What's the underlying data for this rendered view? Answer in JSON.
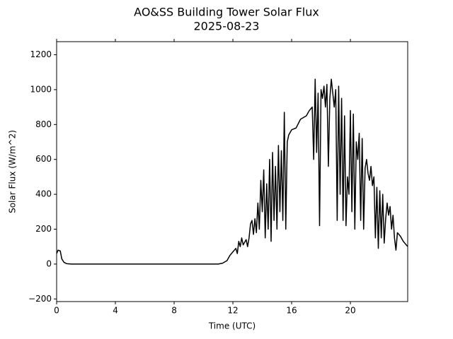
{
  "chart_data": {
    "type": "line",
    "title": "AO&SS Building Tower Solar Flux",
    "subtitle": "2025-08-23",
    "x_label": "Time (UTC)",
    "y_label": "Solar Flux (W/m^2)",
    "xlim": [
      0,
      23.9
    ],
    "ylim": [
      -215,
      1275
    ],
    "xticks": [
      0,
      4,
      8,
      12,
      16,
      20
    ],
    "yticks": [
      {
        "value": -200,
        "label": "−200"
      },
      0,
      200,
      400,
      600,
      800,
      1000,
      1200
    ],
    "grid": false,
    "series": [
      {
        "name": "Solar Flux",
        "color": "#000000",
        "x": [
          0,
          0.1,
          0.25,
          0.35,
          0.5,
          0.7,
          1,
          11,
          11.3,
          11.6,
          11.8,
          12,
          12.2,
          12.3,
          12.4,
          12.5,
          12.6,
          12.7,
          12.9,
          13.0,
          13.1,
          13.2,
          13.3,
          13.4,
          13.5,
          13.6,
          13.7,
          13.8,
          13.9,
          14.0,
          14.1,
          14.2,
          14.3,
          14.4,
          14.5,
          14.6,
          14.7,
          14.8,
          14.9,
          15.0,
          15.1,
          15.2,
          15.3,
          15.4,
          15.5,
          15.6,
          15.7,
          15.8,
          16.0,
          16.3,
          16.6,
          17.0,
          17.2,
          17.4,
          17.5,
          17.6,
          17.7,
          17.8,
          17.9,
          18.0,
          18.1,
          18.2,
          18.3,
          18.4,
          18.5,
          18.6,
          18.7,
          18.8,
          18.9,
          19.0,
          19.1,
          19.2,
          19.3,
          19.4,
          19.5,
          19.6,
          19.7,
          19.8,
          19.9,
          20.0,
          20.1,
          20.2,
          20.3,
          20.4,
          20.5,
          20.6,
          20.7,
          20.8,
          20.9,
          21.0,
          21.1,
          21.2,
          21.3,
          21.4,
          21.5,
          21.6,
          21.7,
          21.8,
          21.9,
          22.0,
          22.1,
          22.2,
          22.3,
          22.4,
          22.5,
          22.6,
          22.7,
          22.8,
          22.9,
          23.0,
          23.1,
          23.2,
          23.4,
          23.6,
          23.9
        ],
        "values": [
          60,
          80,
          75,
          30,
          10,
          2,
          0,
          0,
          5,
          20,
          50,
          70,
          90,
          60,
          130,
          100,
          150,
          110,
          140,
          100,
          150,
          230,
          250,
          170,
          260,
          180,
          350,
          200,
          480,
          300,
          540,
          150,
          460,
          200,
          600,
          130,
          640,
          250,
          560,
          200,
          680,
          300,
          650,
          250,
          870,
          200,
          700,
          740,
          770,
          780,
          830,
          850,
          880,
          900,
          600,
          1060,
          640,
          980,
          220,
          1000,
          950,
          1020,
          900,
          1030,
          560,
          950,
          1060,
          980,
          900,
          1000,
          250,
          1020,
          400,
          950,
          250,
          850,
          220,
          500,
          400,
          880,
          300,
          860,
          200,
          700,
          600,
          750,
          250,
          720,
          200,
          550,
          600,
          520,
          480,
          560,
          450,
          500,
          150,
          440,
          90,
          420,
          150,
          400,
          120,
          260,
          350,
          280,
          330,
          200,
          280,
          150,
          80,
          180,
          160,
          130,
          100
        ]
      }
    ]
  }
}
